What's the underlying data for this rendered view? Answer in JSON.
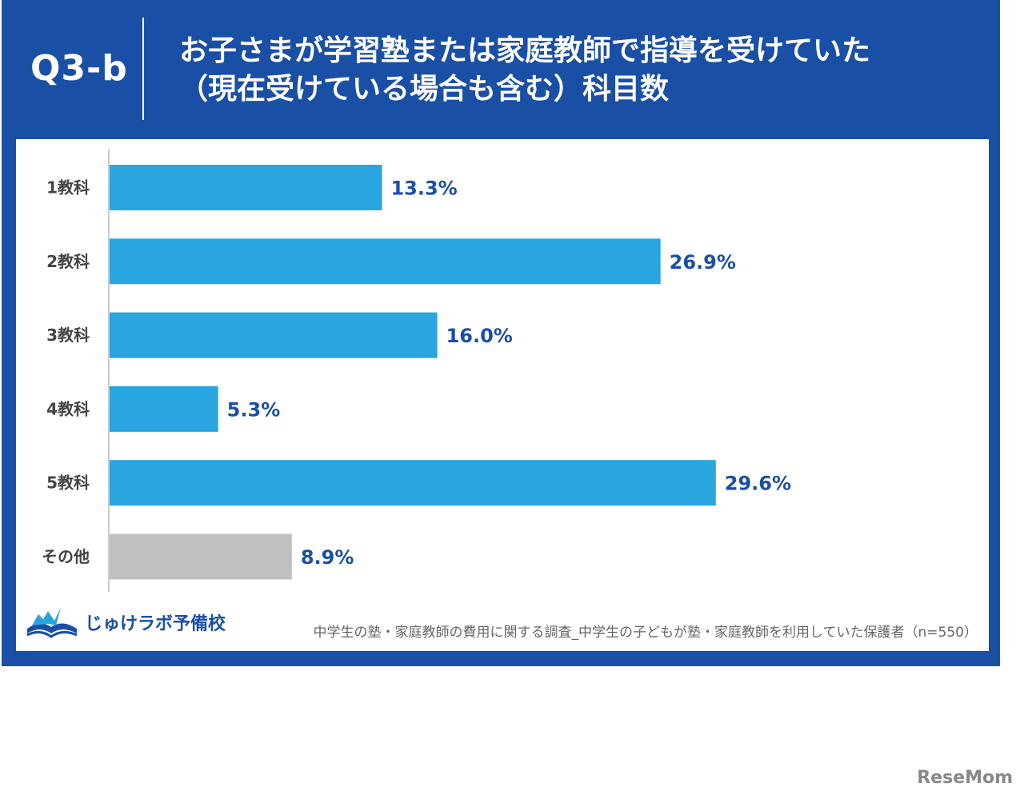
{
  "header": {
    "question_number": "Q3-b",
    "title_line1": "お子さまが学習塾または家庭教師で指導を受けていた",
    "title_line2": "（現在受けている場合も含む）科目数"
  },
  "chart_data": {
    "type": "bar",
    "orientation": "horizontal",
    "categories": [
      "1教科",
      "2教科",
      "3教科",
      "4教科",
      "5教科",
      "その他"
    ],
    "values": [
      13.3,
      26.9,
      16.0,
      5.3,
      29.6,
      8.9
    ],
    "value_labels": [
      "13.3%",
      "26.9%",
      "16.0%",
      "5.3%",
      "29.6%",
      "8.9%"
    ],
    "unit": "%",
    "xlim": [
      0,
      40
    ],
    "grid": false,
    "legend": "none",
    "colors": {
      "bar": "#29a5e0",
      "bar_other": "#c0c0c0",
      "value_label": "#1a4fa6",
      "category_label": "#444444",
      "axis": "#bbbbbb"
    }
  },
  "footer": {
    "logo_text": "じゅけラボ予備校",
    "source": "中学生の塾・家庭教師の費用に関する調査_中学生の子どもが塾・家庭教師を利用していた保護者（n=550）"
  },
  "watermark": "ReseMom",
  "colors": {
    "frame": "#1a4fa6",
    "panel": "#ffffff"
  }
}
